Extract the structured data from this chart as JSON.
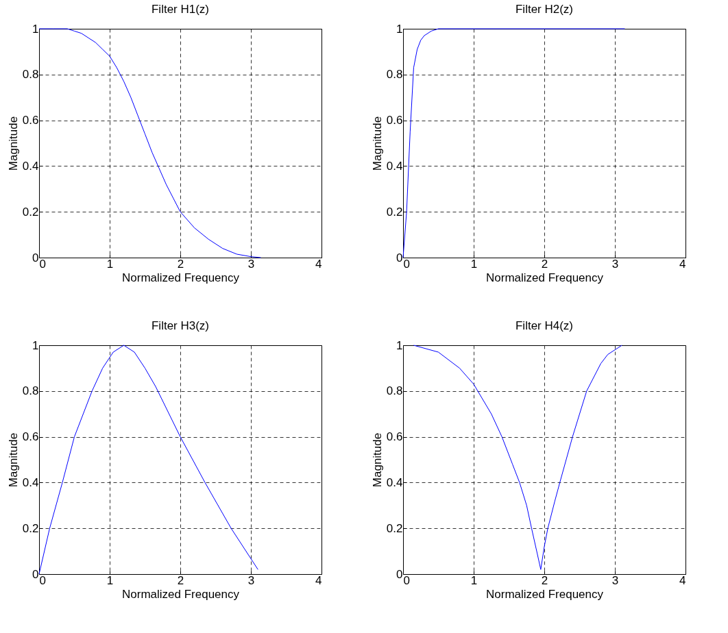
{
  "chart_data": [
    {
      "type": "line",
      "title": "Filter H1(z)",
      "xlabel": "Normalized Frequency",
      "ylabel": "Magnitude",
      "xlim": [
        0,
        4
      ],
      "ylim": [
        0,
        1
      ],
      "xticks": [
        0,
        1,
        2,
        3,
        4
      ],
      "yticks": [
        0,
        0.2,
        0.4,
        0.6,
        0.8,
        1
      ],
      "grid": true,
      "line_style": "solid",
      "x": [
        0,
        0.2,
        0.4,
        0.5,
        0.6,
        0.7,
        0.8,
        0.9,
        1.0,
        1.1,
        1.2,
        1.3,
        1.4,
        1.5,
        1.6,
        1.7,
        1.8,
        1.9,
        2.0,
        2.2,
        2.4,
        2.6,
        2.8,
        3.0,
        3.14
      ],
      "series": [
        {
          "color": "#0000ff",
          "values": [
            1,
            1,
            1,
            0.99,
            0.98,
            0.96,
            0.94,
            0.91,
            0.88,
            0.83,
            0.77,
            0.7,
            0.62,
            0.54,
            0.46,
            0.39,
            0.32,
            0.26,
            0.2,
            0.13,
            0.08,
            0.04,
            0.015,
            0.004,
            0
          ]
        }
      ]
    },
    {
      "type": "line",
      "title": "Filter H2(z)",
      "xlabel": "Normalized Frequency",
      "ylabel": "Magnitude",
      "xlim": [
        0,
        4
      ],
      "ylim": [
        0,
        1
      ],
      "xticks": [
        0,
        1,
        2,
        3,
        4
      ],
      "yticks": [
        0,
        0.2,
        0.4,
        0.6,
        0.8,
        1
      ],
      "grid": true,
      "line_style": "solid",
      "x": [
        0,
        0.05,
        0.1,
        0.15,
        0.2,
        0.25,
        0.3,
        0.4,
        0.5,
        1.0,
        2.0,
        3.14
      ],
      "series": [
        {
          "color": "#0000ff",
          "values": [
            0,
            0.2,
            0.55,
            0.83,
            0.91,
            0.95,
            0.97,
            0.99,
            1,
            1,
            1,
            1
          ]
        }
      ]
    },
    {
      "type": "line",
      "title": "Filter H3(z)",
      "xlabel": "Normalized Frequency",
      "ylabel": "Magnitude",
      "xlim": [
        0,
        4
      ],
      "ylim": [
        0,
        1
      ],
      "xticks": [
        0,
        1,
        2,
        3,
        4
      ],
      "yticks": [
        0,
        0.2,
        0.4,
        0.6,
        0.8,
        1
      ],
      "grid": true,
      "line_style": "solid",
      "x": [
        0,
        0.15,
        0.33,
        0.5,
        0.75,
        0.9,
        1.05,
        1.2,
        1.35,
        1.5,
        1.65,
        2.0,
        2.35,
        2.72,
        3.1
      ],
      "series": [
        {
          "color": "#0000ff",
          "values": [
            0,
            0.2,
            0.4,
            0.6,
            0.8,
            0.9,
            0.97,
            1,
            0.97,
            0.9,
            0.82,
            0.6,
            0.4,
            0.2,
            0.02
          ]
        }
      ]
    },
    {
      "type": "line",
      "title": "Filter H4(z)",
      "xlabel": "Normalized Frequency",
      "ylabel": "Magnitude",
      "xlim": [
        0,
        4
      ],
      "ylim": [
        0,
        1
      ],
      "xticks": [
        0,
        1,
        2,
        3,
        4
      ],
      "yticks": [
        0,
        0.2,
        0.4,
        0.6,
        0.8,
        1
      ],
      "grid": true,
      "line_style": "solid",
      "x": [
        0.15,
        0.5,
        0.8,
        1.0,
        1.25,
        1.4,
        1.55,
        1.65,
        1.75,
        1.82,
        1.9,
        1.95,
        2.0,
        2.05,
        2.15,
        2.22,
        2.4,
        2.6,
        2.8,
        2.9,
        3.1
      ],
      "series": [
        {
          "color": "#0000ff",
          "values": [
            1,
            0.97,
            0.9,
            0.83,
            0.7,
            0.6,
            0.48,
            0.4,
            0.3,
            0.2,
            0.09,
            0.02,
            0.12,
            0.2,
            0.32,
            0.4,
            0.6,
            0.8,
            0.92,
            0.96,
            1
          ]
        }
      ]
    }
  ]
}
